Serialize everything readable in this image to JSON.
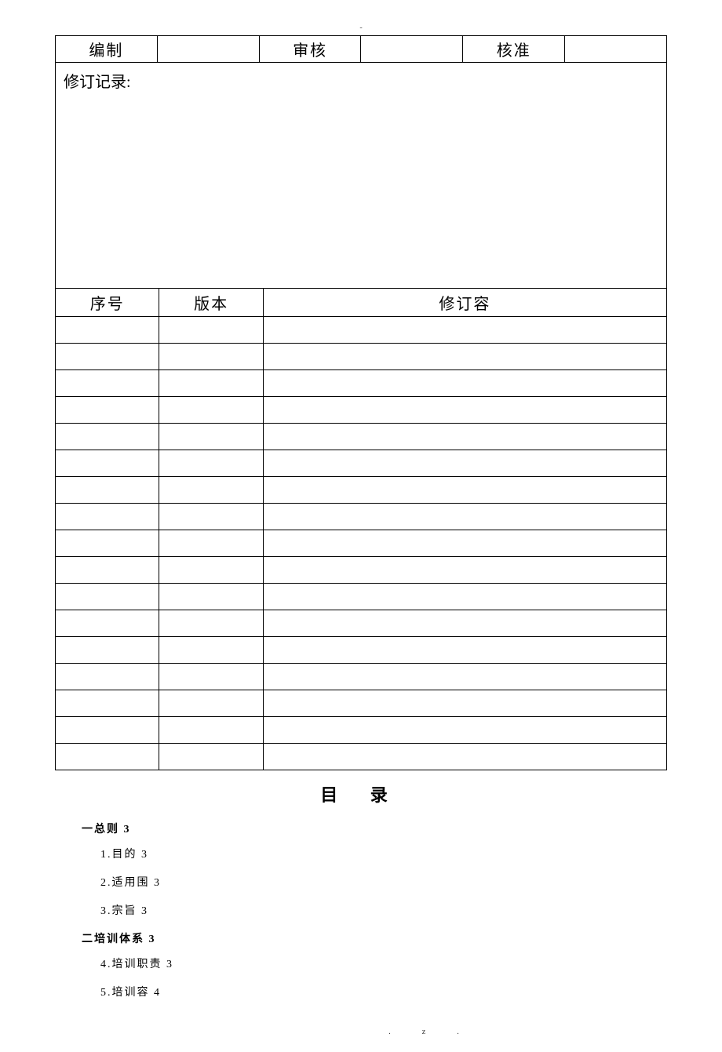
{
  "approval_table": {
    "col1_label": "编制",
    "col3_label": "审核",
    "col5_label": "核准"
  },
  "revision_record_label": "修订记录:",
  "revision_table": {
    "columns": {
      "seq": "序号",
      "version": "版本",
      "content": "修订容"
    },
    "row_count": 17
  },
  "toc": {
    "title": "目 录",
    "sections": [
      {
        "heading": "一总则 3",
        "items": [
          "1.目的 3",
          "2.适用围 3",
          "3.宗旨 3"
        ]
      },
      {
        "heading": "二培训体系 3",
        "items": [
          "4.培训职责 3",
          "5.培训容 4"
        ]
      }
    ]
  },
  "header_mark": "-",
  "footer_marks": ".z.",
  "colors": {
    "background": "#ffffff",
    "border": "#000000",
    "text": "#000000"
  }
}
